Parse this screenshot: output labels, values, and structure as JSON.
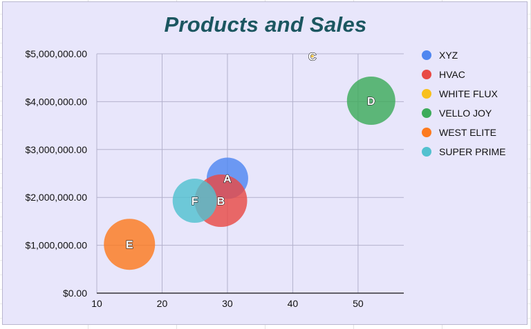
{
  "chart_data": {
    "type": "bubble",
    "title": "Products and Sales",
    "xlabel": "",
    "ylabel": "",
    "xlim": [
      10,
      57
    ],
    "ylim": [
      0,
      5000000
    ],
    "x_ticks": [
      "10",
      "20",
      "30",
      "40",
      "50"
    ],
    "y_ticks": [
      "$0.00",
      "$1,000,000.00",
      "$2,000,000.00",
      "$3,000,000.00",
      "$4,000,000.00",
      "$5,000,000.00"
    ],
    "grid": true,
    "legend_position": "right",
    "series": [
      {
        "name": "XYZ",
        "label": "A",
        "x": 30,
        "y": 2400000,
        "size": 30,
        "color": "#4f86f0"
      },
      {
        "name": "HVAC",
        "label": "B",
        "x": 29,
        "y": 1930000,
        "size": 38,
        "color": "#e84a45"
      },
      {
        "name": "WHITE FLUX",
        "label": "C",
        "x": 43,
        "y": 4950000,
        "size": 2,
        "color": "#f8c01c"
      },
      {
        "name": "VELLO JOY",
        "label": "D",
        "x": 52,
        "y": 4020000,
        "size": 35,
        "color": "#3dab5a"
      },
      {
        "name": "WEST ELITE",
        "label": "E",
        "x": 15,
        "y": 1020000,
        "size": 37,
        "color": "#fd7a1e"
      },
      {
        "name": "SUPER PRIME",
        "label": "F",
        "x": 25,
        "y": 1930000,
        "size": 32,
        "color": "#52c1cf"
      }
    ]
  },
  "colors": {
    "background": "#e8e6fb",
    "title": "#1b5660",
    "grid": "#b3b1cc"
  }
}
